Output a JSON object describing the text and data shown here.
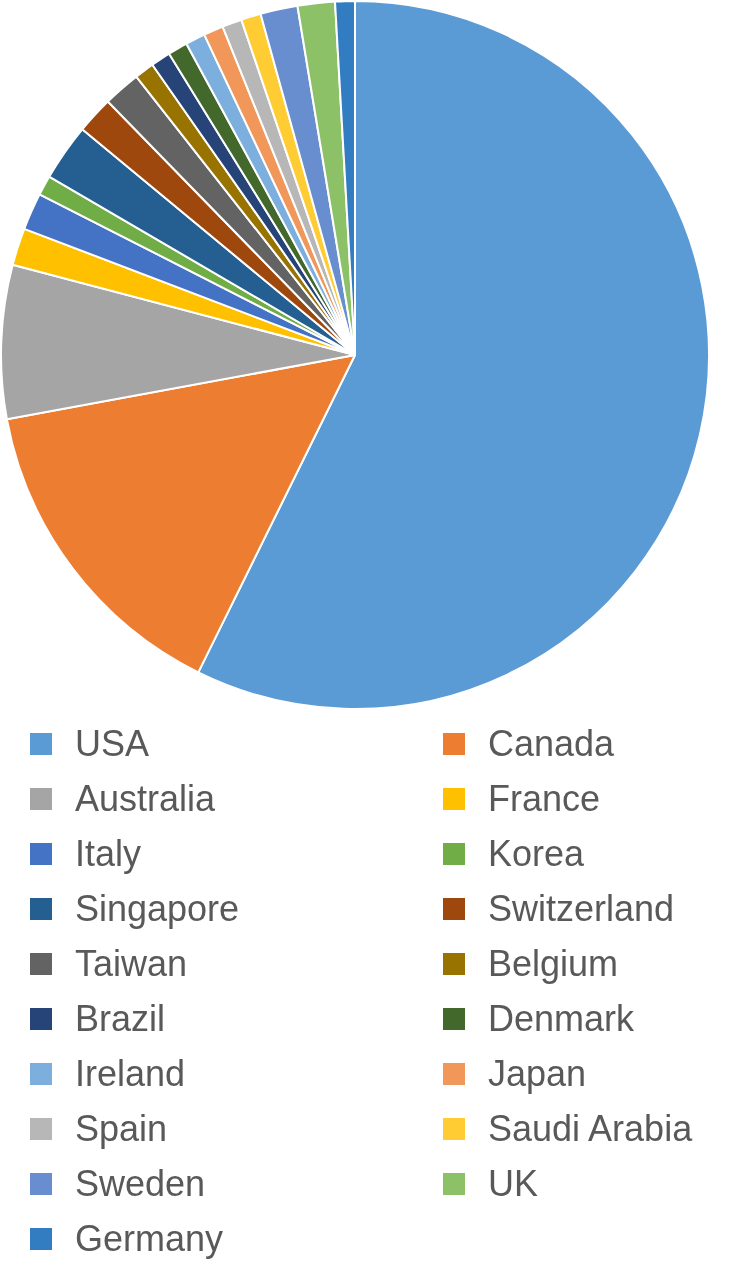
{
  "chart_data": {
    "type": "pie",
    "legend": "bottom",
    "categories": [
      "USA",
      "Canada",
      "Australia",
      "France",
      "Italy",
      "Korea",
      "Singapore",
      "Switzerland",
      "Taiwan",
      "Belgium",
      "Brazil",
      "Denmark",
      "Ireland",
      "Japan",
      "Spain",
      "Saudi Arabia",
      "Sweden",
      "UK",
      "Germany"
    ],
    "values": [
      57.3,
      14.8,
      7.0,
      1.7,
      1.7,
      0.9,
      2.6,
      1.7,
      1.7,
      0.9,
      0.9,
      0.9,
      0.9,
      0.9,
      0.9,
      0.9,
      1.7,
      1.7,
      0.9
    ],
    "colors": [
      "#5b9bd5",
      "#ed7d31",
      "#a5a5a5",
      "#ffc000",
      "#4472c4",
      "#70ad47",
      "#255e91",
      "#9e480e",
      "#636363",
      "#997300",
      "#264478",
      "#43682b",
      "#7cafdd",
      "#f1975a",
      "#b7b7b7",
      "#ffcd33",
      "#698ed0",
      "#8cc168",
      "#327dc2"
    ]
  }
}
